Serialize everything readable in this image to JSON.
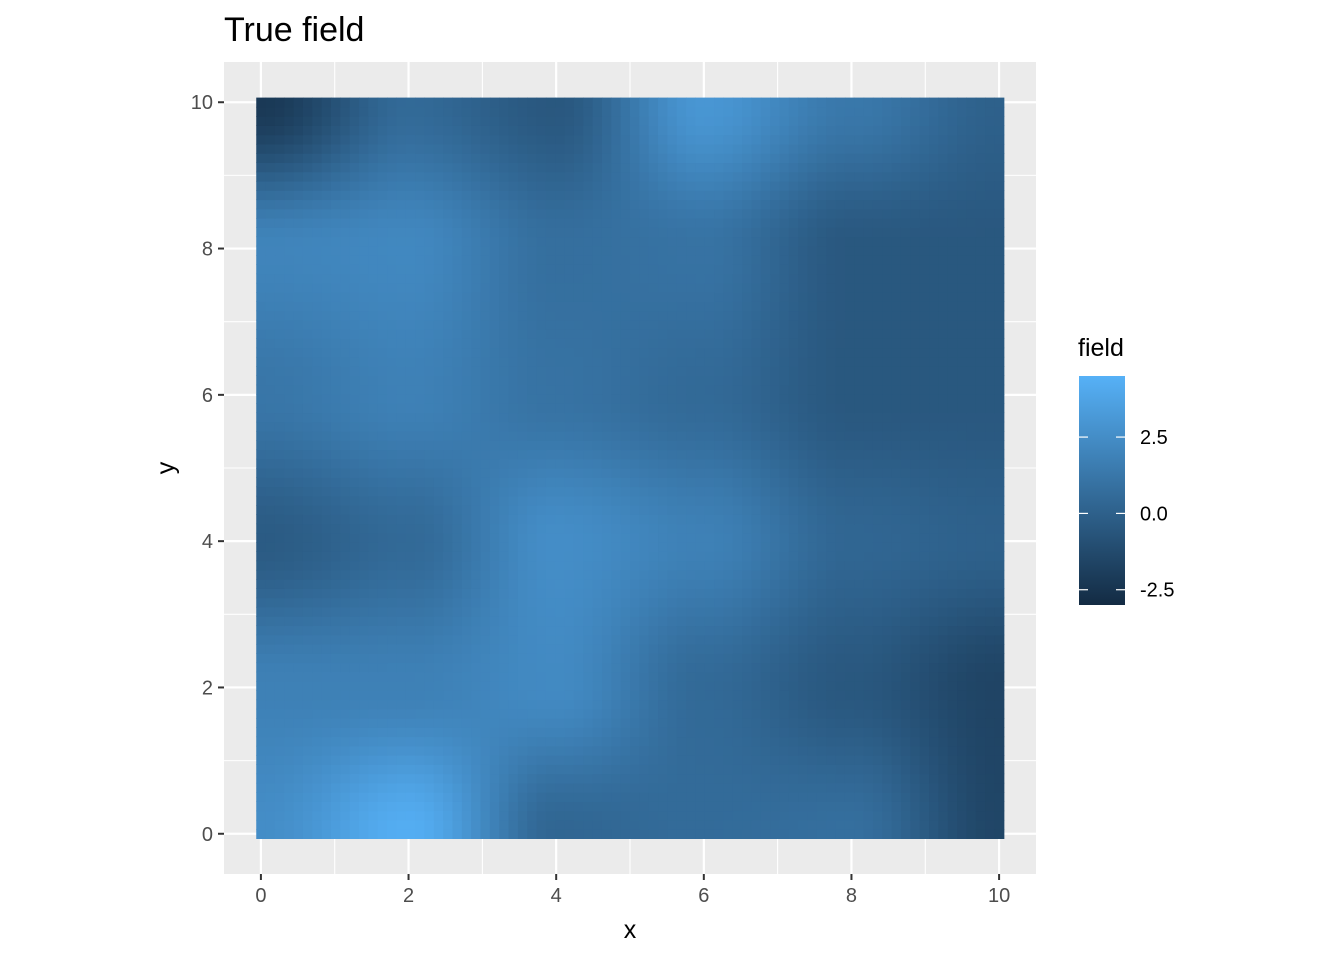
{
  "chart_data": {
    "type": "heatmap",
    "title": "True field",
    "xlabel": "x",
    "ylabel": "y",
    "xlim": [
      -0.5,
      10.5
    ],
    "ylim": [
      -0.55,
      10.55
    ],
    "x_ticks": [
      0,
      2,
      4,
      6,
      8,
      10
    ],
    "y_ticks": [
      0,
      2,
      4,
      6,
      8,
      10
    ],
    "x_tick_labels": [
      "0",
      "2",
      "4",
      "6",
      "8",
      "10"
    ],
    "y_tick_labels": [
      "0",
      "2",
      "4",
      "6",
      "8",
      "10"
    ],
    "grid": true,
    "x_grid": [
      0,
      2,
      4,
      6,
      8,
      10
    ],
    "y_grid": [
      0,
      2,
      4,
      6,
      8,
      10
    ],
    "panel_background": "#ebebeb",
    "legend": {
      "title": "field",
      "position": "right",
      "range": [
        -3.0,
        4.5
      ],
      "breaks": [
        2.5,
        0.0,
        -2.5
      ],
      "labels": [
        "2.5",
        "0.0",
        "-2.5"
      ],
      "color_low": "#132b43",
      "color_high": "#56b1f7"
    },
    "grid_x": [
      0,
      2,
      4,
      6,
      8,
      10
    ],
    "grid_y": [
      0,
      2,
      4,
      6,
      8,
      10
    ],
    "z": [
      [
        2.5,
        4.3,
        0.3,
        0.6,
        0.8,
        -1.5
      ],
      [
        1.8,
        1.8,
        2.3,
        0.5,
        -0.5,
        -1.6
      ],
      [
        -0.3,
        0.5,
        2.5,
        1.8,
        0.3,
        0.0
      ],
      [
        1.2,
        1.8,
        1.0,
        0.5,
        -0.5,
        -0.5
      ],
      [
        2.0,
        2.2,
        0.8,
        1.0,
        -0.5,
        -0.5
      ],
      [
        -2.2,
        0.5,
        -0.5,
        3.0,
        1.3,
        0.0
      ]
    ]
  }
}
